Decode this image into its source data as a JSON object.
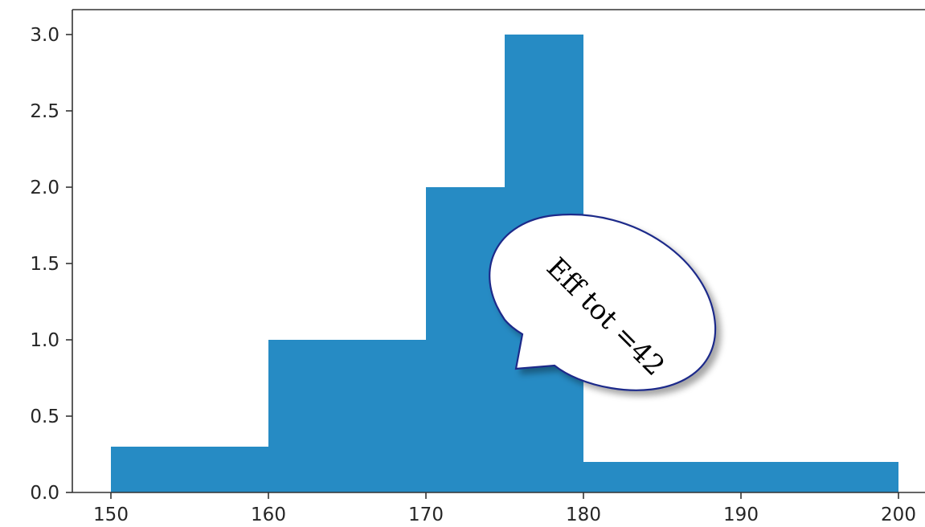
{
  "chart_data": {
    "type": "bar",
    "subtype": "histogram",
    "bins": [
      {
        "start": 150,
        "end": 160,
        "value": 0.3
      },
      {
        "start": 160,
        "end": 170,
        "value": 1.0
      },
      {
        "start": 170,
        "end": 175,
        "value": 2.0
      },
      {
        "start": 175,
        "end": 180,
        "value": 3.0
      },
      {
        "start": 180,
        "end": 200,
        "value": 0.2
      }
    ],
    "xlim": [
      147.5,
      201.5
    ],
    "ylim": [
      0,
      3.15
    ],
    "x_ticks": [
      150,
      160,
      170,
      180,
      190,
      200
    ],
    "y_ticks": [
      "0.0",
      "0.5",
      "1.0",
      "1.5",
      "2.0",
      "2.5",
      "3.0"
    ],
    "title": "",
    "xlabel": "",
    "ylabel": "",
    "grid": false,
    "colors": {
      "bar": "#268bc4",
      "bubble_border": "#1f2a8a"
    },
    "annotation": {
      "text": "Eff tot =42",
      "shape": "speech-bubble"
    }
  }
}
